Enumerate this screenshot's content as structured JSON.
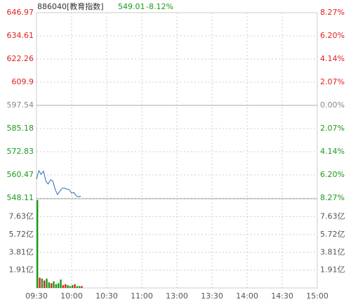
{
  "chart_data": {
    "type": "line",
    "title": "886040[教育指数]",
    "price_label": "549.01",
    "change_label": "-8.12%",
    "x": [
      "09:30",
      "09:32",
      "09:34",
      "09:36",
      "09:38",
      "09:40",
      "09:42",
      "09:44",
      "09:46",
      "09:48",
      "09:50",
      "09:52",
      "09:54",
      "09:56",
      "09:58",
      "10:00",
      "10:02",
      "10:04",
      "10:06",
      "10:08"
    ],
    "values": [
      558.2,
      562.7,
      560.8,
      562.5,
      557.1,
      555.6,
      557.9,
      557.1,
      552.6,
      550.0,
      551.9,
      553.4,
      553.4,
      552.9,
      552.6,
      550.7,
      551.1,
      549.2,
      548.9,
      549.0
    ],
    "color": "#2a6fb5",
    "ylim": [
      548.11,
      646.97
    ],
    "yticks": [
      646.97,
      634.61,
      622.26,
      609.9,
      597.54,
      585.18,
      572.83,
      560.47,
      548.11
    ],
    "y2lim": [
      -8.27,
      8.27
    ],
    "y2ticks": [
      {
        "value": 8.27,
        "label": "8.27%"
      },
      {
        "value": 6.2,
        "label": "6.20%"
      },
      {
        "value": 4.14,
        "label": "4.14%"
      },
      {
        "value": 2.07,
        "label": "2.07%"
      },
      {
        "value": 0,
        "label": "0.00%"
      },
      {
        "value": -2.07,
        "label": "2.07%"
      },
      {
        "value": -4.14,
        "label": "4.14%"
      },
      {
        "value": -6.2,
        "label": "6.20%"
      },
      {
        "value": -8.27,
        "label": "8.27%"
      }
    ],
    "xticks": [
      "09:30",
      "10:00",
      "10:30",
      "11:00",
      "13:00",
      "13:30",
      "14:00",
      "14:30",
      "15:00"
    ],
    "volume": {
      "values": [
        9.4,
        1.1,
        1.0,
        0.8,
        1.0,
        0.6,
        0.5,
        0.7,
        0.4,
        0.5,
        0.9,
        0.3,
        0.4,
        0.3,
        0.2,
        0.3,
        0.4,
        0.2,
        0.2,
        0.2
      ],
      "colors": [
        "#1a9a1a",
        "#e02020",
        "#1a9a1a",
        "#e02020",
        "#1a9a1a",
        "#1a9a1a",
        "#e02020",
        "#1a9a1a",
        "#1a9a1a",
        "#1a9a1a",
        "#1a9a1a",
        "#e02020",
        "#e02020",
        "#1a9a1a",
        "#1a9a1a",
        "#1a9a1a",
        "#e02020",
        "#1a9a1a",
        "#1a9a1a",
        "#e02020"
      ],
      "ylim": [
        0,
        9.54
      ],
      "yticks": [
        {
          "value": 7.63,
          "label": "7.63亿"
        },
        {
          "value": 5.72,
          "label": "5.72亿"
        },
        {
          "value": 3.81,
          "label": "3.81亿"
        },
        {
          "value": 1.91,
          "label": "1.91亿"
        }
      ]
    },
    "up_color": "#e02020",
    "down_color": "#1a9a1a",
    "flat_color": "#888888",
    "grid": true
  }
}
